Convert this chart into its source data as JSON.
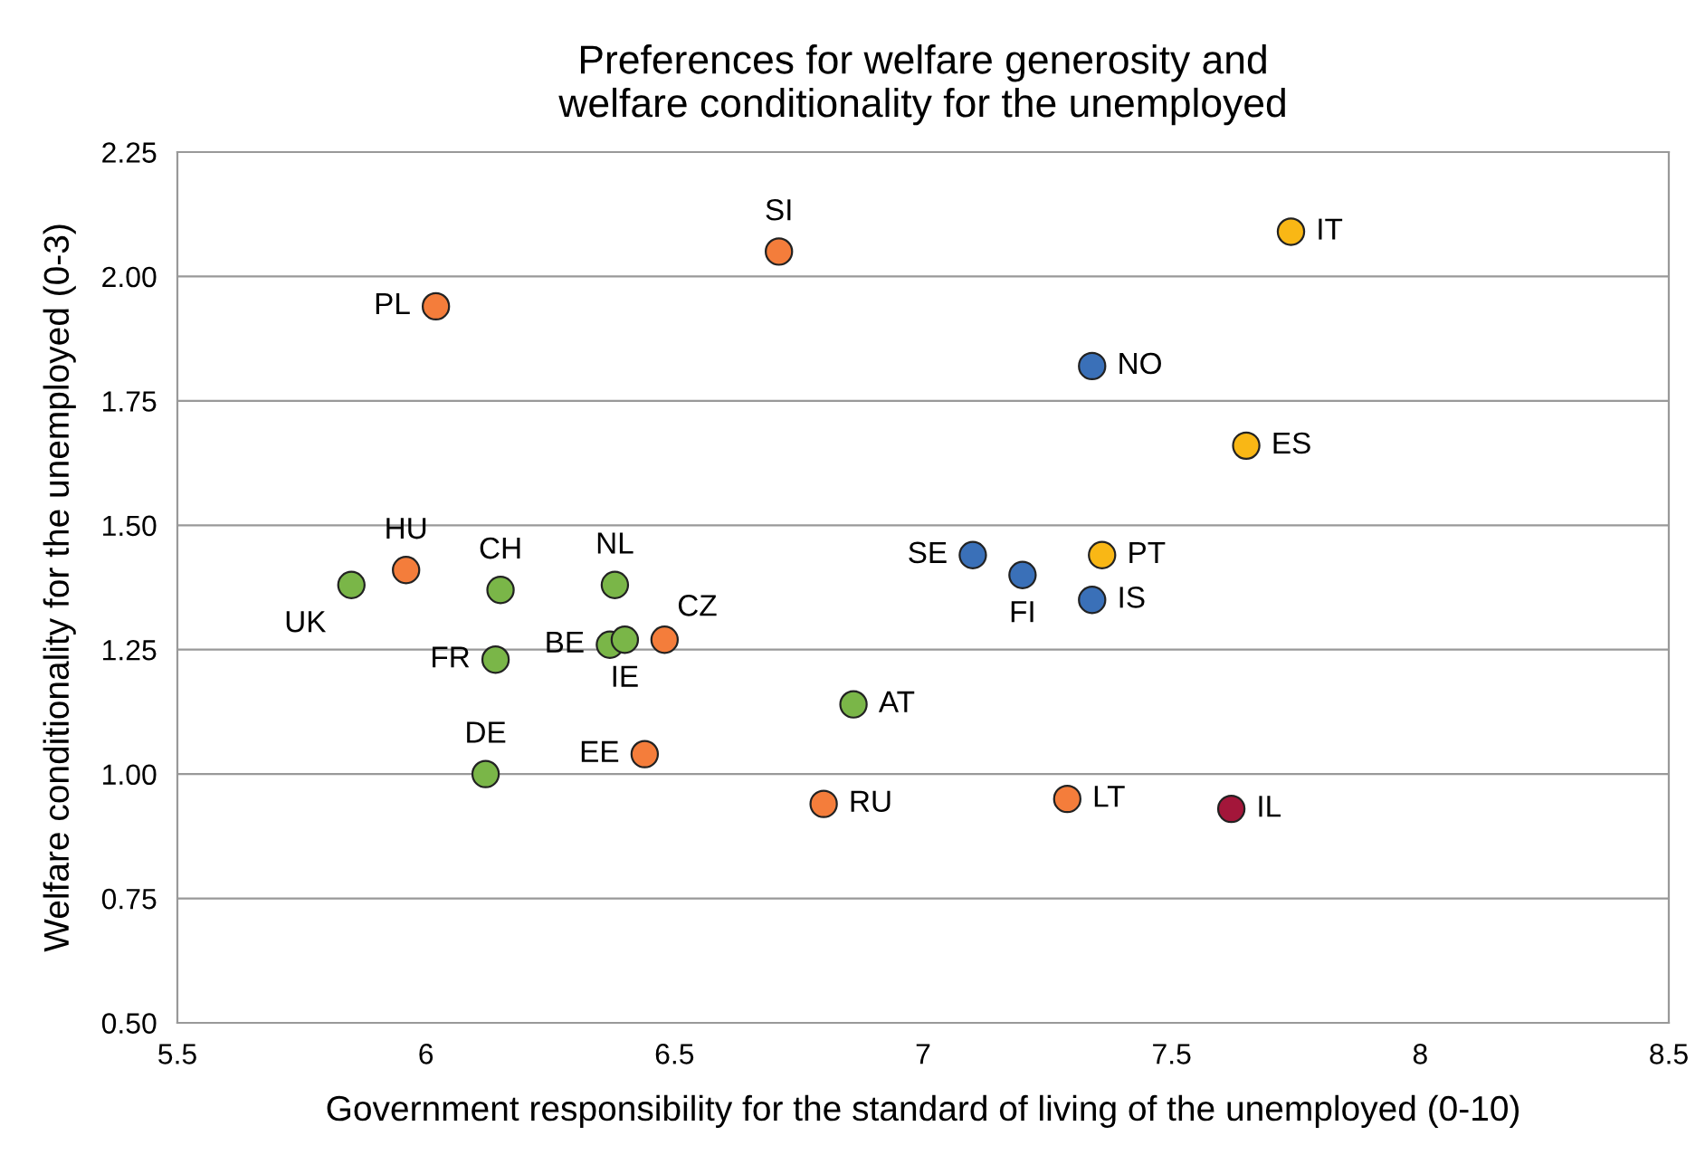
{
  "chart_data": {
    "type": "scatter",
    "title": "Preferences for welfare generosity and\nwelfare conditionality for the unemployed",
    "xlabel": "Government responsibility for the standard of living of the unemployed (0-10)",
    "ylabel": "Welfare conditionality for the unemployed (0-3)",
    "xlim": [
      5.5,
      8.5
    ],
    "xticks": [
      5.5,
      6,
      6.5,
      7,
      7.5,
      8,
      8.5
    ],
    "ylim": [
      0.5,
      2.25
    ],
    "yticks": [
      {
        "value": 0.5,
        "label": "0.50"
      },
      {
        "value": 0.75,
        "label": "0.75"
      },
      {
        "value": 1.0,
        "label": "1.00"
      },
      {
        "value": 1.25,
        "label": "1.25"
      },
      {
        "value": 1.5,
        "label": "1.50"
      },
      {
        "value": 1.75,
        "label": "1.75"
      },
      {
        "value": 2.0,
        "label": "2.00"
      },
      {
        "value": 2.25,
        "label": "2.25"
      }
    ],
    "grid": "y",
    "marker": "circle",
    "legend": false,
    "series": [
      {
        "name": "PL",
        "color": "#f47d3b",
        "x": [
          6.02
        ],
        "values": [
          1.94
        ]
      },
      {
        "name": "SI",
        "color": "#f47d3b",
        "x": [
          6.71
        ],
        "values": [
          2.05
        ]
      },
      {
        "name": "IT",
        "color": "#f9b715",
        "x": [
          7.74
        ],
        "values": [
          2.09
        ]
      },
      {
        "name": "NO",
        "color": "#3a70b8",
        "x": [
          7.34
        ],
        "values": [
          1.82
        ]
      },
      {
        "name": "ES",
        "color": "#f9b715",
        "x": [
          7.65
        ],
        "values": [
          1.66
        ]
      },
      {
        "name": "PT",
        "color": "#f9b715",
        "x": [
          7.36
        ],
        "values": [
          1.44
        ]
      },
      {
        "name": "SE",
        "color": "#3a70b8",
        "x": [
          7.1
        ],
        "values": [
          1.44
        ]
      },
      {
        "name": "FI",
        "color": "#3a70b8",
        "x": [
          7.2
        ],
        "values": [
          1.4
        ]
      },
      {
        "name": "IS",
        "color": "#3a70b8",
        "x": [
          7.34
        ],
        "values": [
          1.35
        ]
      },
      {
        "name": "HU",
        "color": "#f47d3b",
        "x": [
          5.96
        ],
        "values": [
          1.41
        ]
      },
      {
        "name": "UK",
        "color": "#7ab648",
        "x": [
          5.85
        ],
        "values": [
          1.38
        ]
      },
      {
        "name": "CH",
        "color": "#7ab648",
        "x": [
          6.15
        ],
        "values": [
          1.37
        ]
      },
      {
        "name": "NL",
        "color": "#7ab648",
        "x": [
          6.38
        ],
        "values": [
          1.38
        ]
      },
      {
        "name": "BE",
        "color": "#7ab648",
        "x": [
          6.37
        ],
        "values": [
          1.26
        ]
      },
      {
        "name": "IE",
        "color": "#7ab648",
        "x": [
          6.4
        ],
        "values": [
          1.27
        ]
      },
      {
        "name": "CZ",
        "color": "#f47d3b",
        "x": [
          6.48
        ],
        "values": [
          1.27
        ]
      },
      {
        "name": "FR",
        "color": "#7ab648",
        "x": [
          6.14
        ],
        "values": [
          1.23
        ]
      },
      {
        "name": "AT",
        "color": "#7ab648",
        "x": [
          6.86
        ],
        "values": [
          1.14
        ]
      },
      {
        "name": "DE",
        "color": "#7ab648",
        "x": [
          6.12
        ],
        "values": [
          1.0
        ]
      },
      {
        "name": "EE",
        "color": "#f47d3b",
        "x": [
          6.44
        ],
        "values": [
          1.04
        ]
      },
      {
        "name": "RU",
        "color": "#f47d3b",
        "x": [
          6.8
        ],
        "values": [
          0.94
        ]
      },
      {
        "name": "LT",
        "color": "#f47d3b",
        "x": [
          7.29
        ],
        "values": [
          0.95
        ]
      },
      {
        "name": "IL",
        "color": "#a3163a",
        "x": [
          7.62
        ],
        "values": [
          0.93
        ]
      }
    ]
  }
}
